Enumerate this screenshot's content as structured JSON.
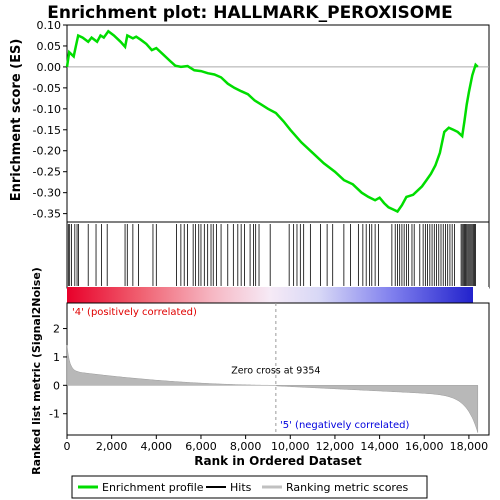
{
  "chart_data": {
    "type": "line",
    "title": "Enrichment plot: HALLMARK_PEROXISOME",
    "ylabel_top": "Enrichment score (ES)",
    "ylabel_bottom": "Ranked list metric (Signal2Noise)",
    "xlabel": "Rank in Ordered Dataset",
    "x_range": [
      0,
      18900
    ],
    "x_ticks": [
      0,
      2000,
      4000,
      6000,
      8000,
      10000,
      12000,
      14000,
      16000,
      18000
    ],
    "x_tick_labels": [
      "0",
      "2,000",
      "4,000",
      "6,000",
      "8,000",
      "10,000",
      "12,000",
      "14,000",
      "16,000",
      "18,000"
    ],
    "es_range": [
      -0.37,
      0.1
    ],
    "es_ticks": [
      0.1,
      0.05,
      0.0,
      -0.05,
      -0.1,
      -0.15,
      -0.2,
      -0.25,
      -0.3,
      -0.35
    ],
    "es_tick_labels": [
      "0.10",
      "0.05",
      "0.00",
      "-0.05",
      "-0.10",
      "-0.15",
      "-0.20",
      "-0.25",
      "-0.30",
      "-0.35"
    ],
    "metric_range": [
      -1.75,
      2.9
    ],
    "metric_ticks": [
      2,
      1,
      0,
      -1
    ],
    "metric_tick_labels": [
      "2",
      "1",
      "0",
      "-1"
    ],
    "enrichment_profile": [
      [
        0,
        0.0
      ],
      [
        100,
        0.035
      ],
      [
        300,
        0.025
      ],
      [
        400,
        0.05
      ],
      [
        500,
        0.075
      ],
      [
        700,
        0.07
      ],
      [
        950,
        0.06
      ],
      [
        1100,
        0.07
      ],
      [
        1350,
        0.06
      ],
      [
        1500,
        0.075
      ],
      [
        1650,
        0.07
      ],
      [
        1850,
        0.085
      ],
      [
        2100,
        0.075
      ],
      [
        2400,
        0.06
      ],
      [
        2600,
        0.048
      ],
      [
        2700,
        0.075
      ],
      [
        2950,
        0.068
      ],
      [
        3100,
        0.072
      ],
      [
        3300,
        0.065
      ],
      [
        3550,
        0.055
      ],
      [
        3800,
        0.04
      ],
      [
        4000,
        0.045
      ],
      [
        4300,
        0.03
      ],
      [
        4600,
        0.015
      ],
      [
        4850,
        0.003
      ],
      [
        5100,
        0.0
      ],
      [
        5400,
        0.002
      ],
      [
        5700,
        -0.008
      ],
      [
        6000,
        -0.01
      ],
      [
        6300,
        -0.015
      ],
      [
        6600,
        -0.018
      ],
      [
        6900,
        -0.025
      ],
      [
        7200,
        -0.04
      ],
      [
        7500,
        -0.05
      ],
      [
        7800,
        -0.058
      ],
      [
        8100,
        -0.065
      ],
      [
        8400,
        -0.08
      ],
      [
        8700,
        -0.09
      ],
      [
        9000,
        -0.1
      ],
      [
        9354,
        -0.11
      ],
      [
        9700,
        -0.13
      ],
      [
        10000,
        -0.15
      ],
      [
        10500,
        -0.18
      ],
      [
        11000,
        -0.205
      ],
      [
        11500,
        -0.23
      ],
      [
        12000,
        -0.25
      ],
      [
        12400,
        -0.27
      ],
      [
        12800,
        -0.28
      ],
      [
        13200,
        -0.3
      ],
      [
        13500,
        -0.31
      ],
      [
        13800,
        -0.318
      ],
      [
        14000,
        -0.312
      ],
      [
        14200,
        -0.325
      ],
      [
        14400,
        -0.335
      ],
      [
        14600,
        -0.34
      ],
      [
        14800,
        -0.345
      ],
      [
        15000,
        -0.33
      ],
      [
        15200,
        -0.31
      ],
      [
        15500,
        -0.305
      ],
      [
        15700,
        -0.295
      ],
      [
        15900,
        -0.285
      ],
      [
        16100,
        -0.27
      ],
      [
        16300,
        -0.255
      ],
      [
        16500,
        -0.235
      ],
      [
        16700,
        -0.205
      ],
      [
        16900,
        -0.155
      ],
      [
        17100,
        -0.145
      ],
      [
        17300,
        -0.15
      ],
      [
        17500,
        -0.155
      ],
      [
        17700,
        -0.165
      ],
      [
        17800,
        -0.13
      ],
      [
        17900,
        -0.09
      ],
      [
        18000,
        -0.06
      ],
      [
        18150,
        -0.02
      ],
      [
        18300,
        0.005
      ],
      [
        18400,
        0.0
      ]
    ],
    "zero_cross_label": "Zero cross at 9354",
    "zero_cross_rank": 9354,
    "positive_label": "'4' (positively correlated)",
    "negative_label": "'5' (negatively correlated)",
    "hit_ranks": [
      60,
      120,
      200,
      350,
      450,
      520,
      950,
      1300,
      1550,
      1800,
      2600,
      2700,
      2950,
      3200,
      3850,
      4000,
      4900,
      5100,
      5250,
      5400,
      5650,
      5750,
      5900,
      6000,
      6150,
      6300,
      6450,
      6550,
      6700,
      6900,
      7200,
      7450,
      7650,
      7800,
      7950,
      8200,
      8350,
      8450,
      8600,
      9100,
      9950,
      10150,
      10300,
      10450,
      10600,
      10900,
      11350,
      11650,
      11900,
      12400,
      12700,
      13050,
      13250,
      13400,
      13550,
      13650,
      13800,
      13950,
      14550,
      14700,
      14800,
      14900,
      15000,
      15100,
      15200,
      15300,
      15450,
      15550,
      15800,
      15950,
      16050,
      16150,
      16250,
      16350,
      16450,
      16550,
      16650,
      16750,
      16850,
      16950,
      17050,
      17150,
      17250,
      17350,
      17650,
      17700,
      17750,
      17800,
      17850,
      17900,
      17950,
      18000,
      18050,
      18100,
      18150,
      18200,
      18250,
      18300
    ],
    "legend": [
      {
        "label": "Enrichment profile",
        "color": "#00cc00"
      },
      {
        "label": "Hits",
        "color": "#000000"
      },
      {
        "label": "Ranking metric scores",
        "color": "#c0c0c0"
      }
    ]
  }
}
